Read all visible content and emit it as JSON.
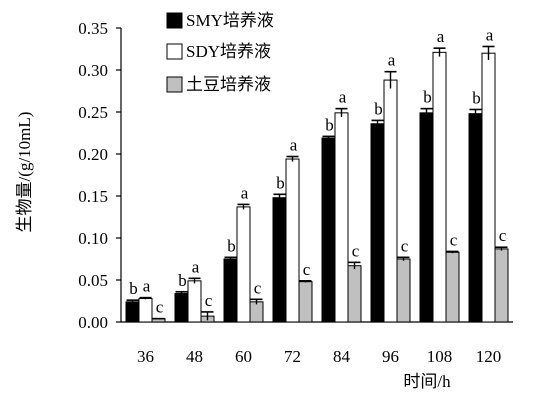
{
  "chart_data": {
    "type": "bar",
    "title": "",
    "xlabel": "时间/h",
    "ylabel": "生物量/(g/10mL)",
    "categories": [
      "36",
      "48",
      "60",
      "72",
      "84",
      "96",
      "108",
      "120"
    ],
    "yticks": [
      "0.00",
      "0.05",
      "0.10",
      "0.15",
      "0.20",
      "0.25",
      "0.30",
      "0.35"
    ],
    "ylim": [
      0,
      0.35
    ],
    "legend_position": "top-left",
    "series": [
      {
        "name": "SMY培养液",
        "color": "#000000",
        "values": [
          0.024,
          0.034,
          0.075,
          0.148,
          0.219,
          0.236,
          0.249,
          0.248
        ],
        "errors": [
          0.002,
          0.002,
          0.002,
          0.004,
          0.002,
          0.004,
          0.005,
          0.005
        ],
        "letters": [
          "b",
          "b",
          "b",
          "b",
          "b",
          "b",
          "b",
          "b"
        ]
      },
      {
        "name": "SDY培养液",
        "color": "#ffffff",
        "values": [
          0.028,
          0.049,
          0.137,
          0.194,
          0.249,
          0.288,
          0.321,
          0.32
        ],
        "errors": [
          0.001,
          0.003,
          0.003,
          0.003,
          0.005,
          0.01,
          0.005,
          0.008
        ],
        "letters": [
          "a",
          "a",
          "a",
          "a",
          "a",
          "a",
          "a",
          "a"
        ]
      },
      {
        "name": "土豆培养液",
        "color": "#c0c0c0",
        "values": [
          0.004,
          0.007,
          0.024,
          0.048,
          0.067,
          0.075,
          0.083,
          0.087
        ],
        "errors": [
          0.0,
          0.005,
          0.003,
          0.001,
          0.004,
          0.002,
          0.001,
          0.002
        ],
        "letters": [
          "c",
          "c",
          "c",
          "c",
          "c",
          "c",
          "c",
          "c"
        ]
      }
    ]
  }
}
